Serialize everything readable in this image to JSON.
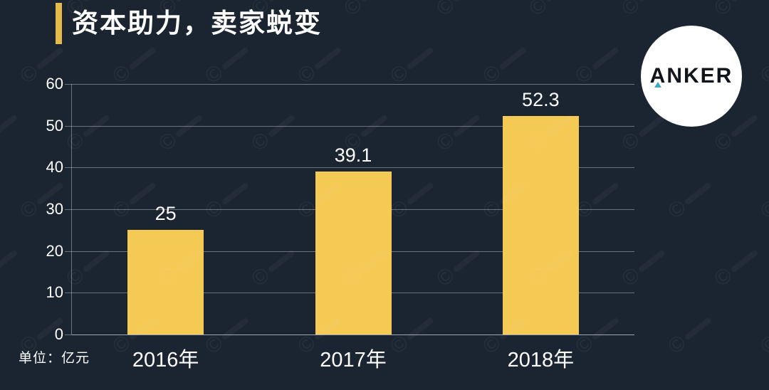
{
  "title": {
    "text": "资本助力，卖家蜕变"
  },
  "logo": {
    "text": "ANKER"
  },
  "unit_label": "单位：亿元",
  "watermark": {
    "glyph": "©"
  },
  "colors": {
    "background": "#1b2531",
    "bar": "#f4c954",
    "accent": "#e6b94c",
    "grid": "rgba(170,180,190,0.55)",
    "text": "#ffffff",
    "logo_triangle": "#3fa8c6",
    "logo_text": "#10141b"
  },
  "chart_data": {
    "type": "bar",
    "categories": [
      "2016年",
      "2017年",
      "2018年"
    ],
    "values": [
      25,
      39.1,
      52.3
    ],
    "value_labels": [
      "25",
      "39.1",
      "52.3"
    ],
    "title": "资本助力，卖家蜕变",
    "xlabel": "",
    "ylabel": "单位：亿元",
    "ylim": [
      0,
      60
    ],
    "yticks": [
      0,
      10,
      20,
      30,
      40,
      50,
      60
    ],
    "grid": true,
    "legend": false
  }
}
